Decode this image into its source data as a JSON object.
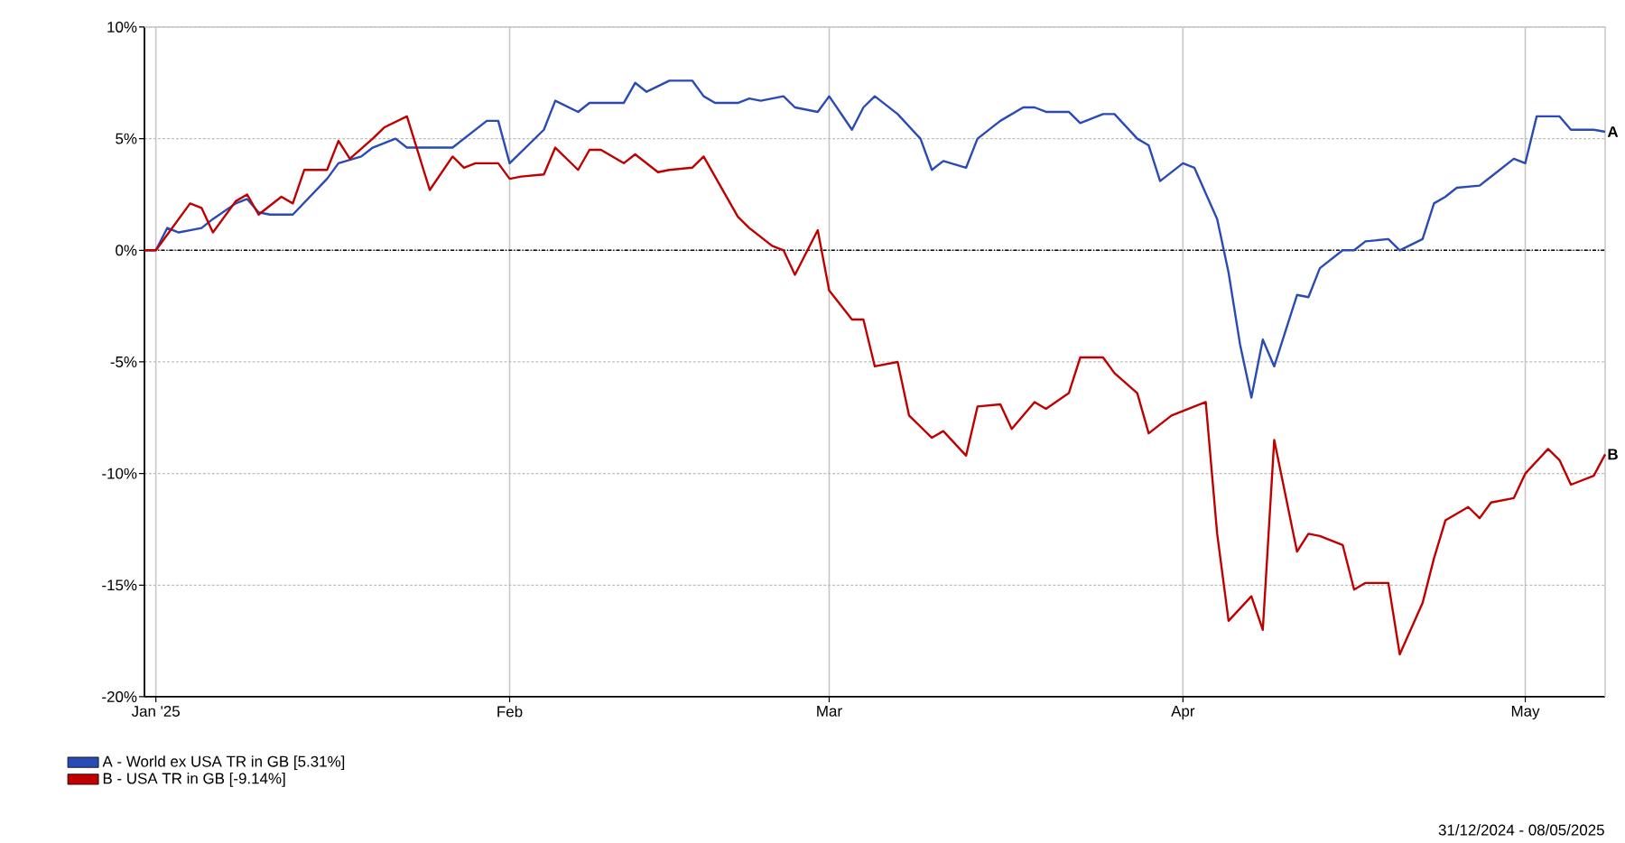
{
  "chart_data": {
    "type": "line",
    "xlim": [
      "2024-12-31",
      "2025-05-08"
    ],
    "xticks": [
      {
        "value": "2025-01-01",
        "label": "Jan '25"
      },
      {
        "value": "2025-02-01",
        "label": "Feb"
      },
      {
        "value": "2025-03-01",
        "label": "Mar"
      },
      {
        "value": "2025-04-01",
        "label": "Apr"
      },
      {
        "value": "2025-05-01",
        "label": "May"
      }
    ],
    "ylim": [
      -20,
      10
    ],
    "yticks": [
      {
        "value": -20,
        "label": "-20%"
      },
      {
        "value": -15,
        "label": "-15%"
      },
      {
        "value": -10,
        "label": "-10%"
      },
      {
        "value": -5,
        "label": "-5%"
      },
      {
        "value": 0,
        "label": "0%"
      },
      {
        "value": 5,
        "label": "5%"
      },
      {
        "value": 10,
        "label": "10%"
      }
    ],
    "grid": true,
    "legend": "bottom left",
    "ref_lines": [
      {
        "axis": "y",
        "value": 0,
        "color": "#000000",
        "line_style": "dotted"
      }
    ],
    "annotations": [
      {
        "text": "A",
        "x": "2025-05-08",
        "y": 5.31
      },
      {
        "text": "B",
        "x": "2025-05-08",
        "y": -9.14
      },
      "31/12/2024 - 08/05/2025"
    ],
    "series": [
      {
        "name": "A - World ex USA TR in GB [5.31%]",
        "color": "#2a4ab5",
        "x": [
          "2024-12-31",
          "2025-01-01",
          "2025-01-02",
          "2025-01-03",
          "2025-01-05",
          "2025-01-06",
          "2025-01-08",
          "2025-01-09",
          "2025-01-10",
          "2025-01-11",
          "2025-01-13",
          "2025-01-16",
          "2025-01-17",
          "2025-01-19",
          "2025-01-20",
          "2025-01-22",
          "2025-01-23",
          "2025-01-27",
          "2025-01-30",
          "2025-01-31",
          "2025-02-01",
          "2025-02-02",
          "2025-02-04",
          "2025-02-05",
          "2025-02-07",
          "2025-02-08",
          "2025-02-11",
          "2025-02-12",
          "2025-02-13",
          "2025-02-15",
          "2025-02-17",
          "2025-02-18",
          "2025-02-19",
          "2025-02-21",
          "2025-02-22",
          "2025-02-23",
          "2025-02-25",
          "2025-02-26",
          "2025-02-28",
          "2025-03-01",
          "2025-03-03",
          "2025-03-04",
          "2025-03-05",
          "2025-03-07",
          "2025-03-09",
          "2025-03-10",
          "2025-03-11",
          "2025-03-13",
          "2025-03-14",
          "2025-03-16",
          "2025-03-18",
          "2025-03-19",
          "2025-03-20",
          "2025-03-22",
          "2025-03-23",
          "2025-03-25",
          "2025-03-26",
          "2025-03-28",
          "2025-03-29",
          "2025-03-30",
          "2025-04-01",
          "2025-04-02",
          "2025-04-04",
          "2025-04-05",
          "2025-04-06",
          "2025-04-07",
          "2025-04-08",
          "2025-04-09",
          "2025-04-11",
          "2025-04-12",
          "2025-04-13",
          "2025-04-15",
          "2025-04-16",
          "2025-04-17",
          "2025-04-19",
          "2025-04-20",
          "2025-04-22",
          "2025-04-23",
          "2025-04-24",
          "2025-04-25",
          "2025-04-27",
          "2025-04-28",
          "2025-04-30",
          "2025-05-01",
          "2025-05-02",
          "2025-05-04",
          "2025-05-05",
          "2025-05-07",
          "2025-05-08"
        ],
        "values": [
          0,
          0,
          1.0,
          0.8,
          1.0,
          1.4,
          2.1,
          2.3,
          1.7,
          1.6,
          1.6,
          3.2,
          3.9,
          4.2,
          4.6,
          5.0,
          4.6,
          4.6,
          5.8,
          5.8,
          3.9,
          4.4,
          5.4,
          6.7,
          6.2,
          6.6,
          6.6,
          7.5,
          7.1,
          7.6,
          7.6,
          6.9,
          6.6,
          6.6,
          6.8,
          6.7,
          6.9,
          6.4,
          6.2,
          6.9,
          5.4,
          6.4,
          6.9,
          6.1,
          5.0,
          3.6,
          4.0,
          3.7,
          5.0,
          5.8,
          6.4,
          6.4,
          6.2,
          6.2,
          5.7,
          6.1,
          6.1,
          5.0,
          4.7,
          3.1,
          3.9,
          3.7,
          1.4,
          -1.0,
          -4.2,
          -6.6,
          -4.0,
          -5.2,
          -2.0,
          -2.1,
          -0.8,
          0.0,
          0.0,
          0.4,
          0.5,
          0.0,
          0.5,
          2.1,
          2.4,
          2.8,
          2.9,
          3.3,
          4.1,
          3.9,
          6.0,
          6.0,
          5.4,
          5.4,
          5.31
        ]
      },
      {
        "name": "B - USA TR in GB [-9.14%]",
        "color": "#c00000",
        "x": [
          "2024-12-31",
          "2025-01-01",
          "2025-01-04",
          "2025-01-05",
          "2025-01-06",
          "2025-01-08",
          "2025-01-09",
          "2025-01-10",
          "2025-01-12",
          "2025-01-13",
          "2025-01-14",
          "2025-01-16",
          "2025-01-17",
          "2025-01-18",
          "2025-01-20",
          "2025-01-21",
          "2025-01-23",
          "2025-01-25",
          "2025-01-27",
          "2025-01-28",
          "2025-01-29",
          "2025-01-31",
          "2025-02-01",
          "2025-02-02",
          "2025-02-04",
          "2025-02-05",
          "2025-02-07",
          "2025-02-08",
          "2025-02-09",
          "2025-02-11",
          "2025-02-12",
          "2025-02-14",
          "2025-02-15",
          "2025-02-17",
          "2025-02-18",
          "2025-02-19",
          "2025-02-21",
          "2025-02-22",
          "2025-02-24",
          "2025-02-25",
          "2025-02-26",
          "2025-02-28",
          "2025-03-01",
          "2025-03-03",
          "2025-03-04",
          "2025-03-05",
          "2025-03-07",
          "2025-03-08",
          "2025-03-10",
          "2025-03-11",
          "2025-03-13",
          "2025-03-14",
          "2025-03-16",
          "2025-03-17",
          "2025-03-19",
          "2025-03-20",
          "2025-03-22",
          "2025-03-23",
          "2025-03-25",
          "2025-03-26",
          "2025-03-28",
          "2025-03-29",
          "2025-03-31",
          "2025-04-01",
          "2025-04-03",
          "2025-04-04",
          "2025-04-05",
          "2025-04-07",
          "2025-04-08",
          "2025-04-09",
          "2025-04-11",
          "2025-04-12",
          "2025-04-13",
          "2025-04-15",
          "2025-04-16",
          "2025-04-17",
          "2025-04-19",
          "2025-04-20",
          "2025-04-22",
          "2025-04-23",
          "2025-04-24",
          "2025-04-26",
          "2025-04-27",
          "2025-04-28",
          "2025-04-30",
          "2025-05-01",
          "2025-05-03",
          "2025-05-04",
          "2025-05-05",
          "2025-05-07",
          "2025-05-08"
        ],
        "values": [
          0,
          0,
          2.1,
          1.9,
          0.8,
          2.2,
          2.5,
          1.6,
          2.4,
          2.1,
          3.6,
          3.6,
          4.9,
          4.1,
          5.0,
          5.5,
          6.0,
          2.7,
          4.2,
          3.7,
          3.9,
          3.9,
          3.2,
          3.3,
          3.4,
          4.6,
          3.6,
          4.5,
          4.5,
          3.9,
          4.3,
          3.5,
          3.6,
          3.7,
          4.2,
          3.3,
          1.5,
          1.0,
          0.2,
          0.0,
          -1.1,
          0.9,
          -1.8,
          -3.1,
          -3.1,
          -5.2,
          -5.0,
          -7.4,
          -8.4,
          -8.1,
          -9.2,
          -7.0,
          -6.9,
          -8.0,
          -6.8,
          -7.1,
          -6.4,
          -4.8,
          -4.8,
          -5.5,
          -6.4,
          -8.2,
          -7.4,
          -7.2,
          -6.8,
          -12.7,
          -16.6,
          -15.5,
          -17.0,
          -8.5,
          -13.5,
          -12.7,
          -12.8,
          -13.2,
          -15.2,
          -14.9,
          -14.9,
          -18.1,
          -15.8,
          -13.8,
          -12.1,
          -11.5,
          -12.0,
          -11.3,
          -11.1,
          -10.0,
          -8.9,
          -9.4,
          -10.5,
          -10.1,
          -9.14
        ]
      }
    ]
  }
}
